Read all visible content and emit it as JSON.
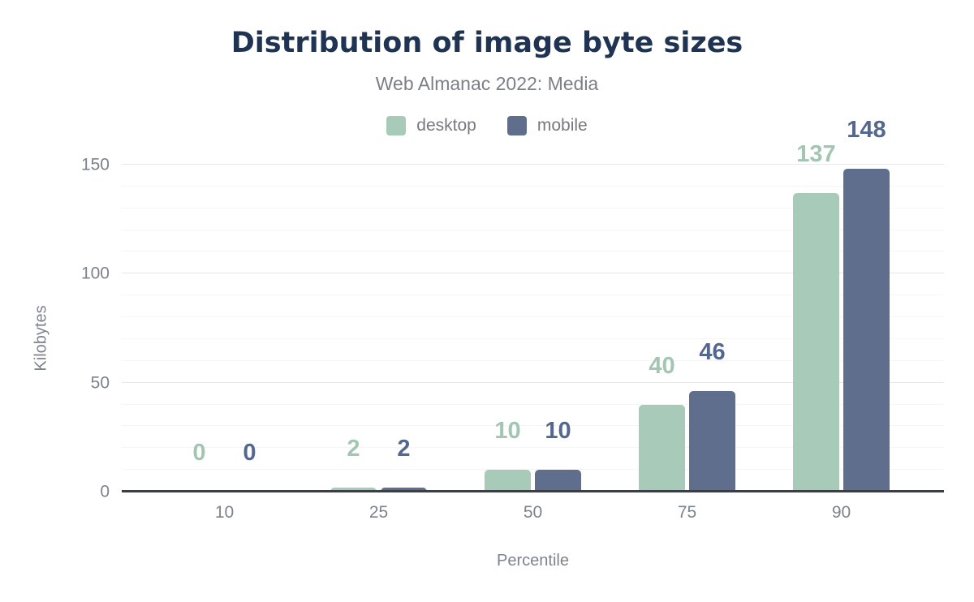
{
  "chart_data": {
    "type": "bar",
    "title": "Distribution of image byte sizes",
    "subtitle": "Web Almanac 2022: Media",
    "xlabel": "Percentile",
    "ylabel": "Kilobytes",
    "categories": [
      "10",
      "25",
      "50",
      "75",
      "90"
    ],
    "series": [
      {
        "name": "desktop",
        "color": "#a8cab8",
        "label_color": "#a2c6b2",
        "values": [
          0,
          2,
          10,
          40,
          137
        ]
      },
      {
        "name": "mobile",
        "color": "#5f6e8c",
        "label_color": "#54678e",
        "values": [
          0,
          2,
          10,
          46,
          148
        ]
      }
    ],
    "ylim": [
      0,
      150
    ],
    "yticks": [
      0,
      50,
      100,
      150
    ],
    "minor_grid_step": 10,
    "major_grid_step": 50,
    "grid": true,
    "legend_position": "top",
    "bar_labels_shown": true
  },
  "colors": {
    "background": "#ffffff",
    "title": "#1f3352",
    "subtitle": "#7b7f86",
    "legend_text": "#76797e",
    "axis_text": "#7d838c",
    "axis_line": "#3b3f45",
    "grid_major": "#e8e8ea",
    "grid_minor": "#f5f5f7"
  }
}
